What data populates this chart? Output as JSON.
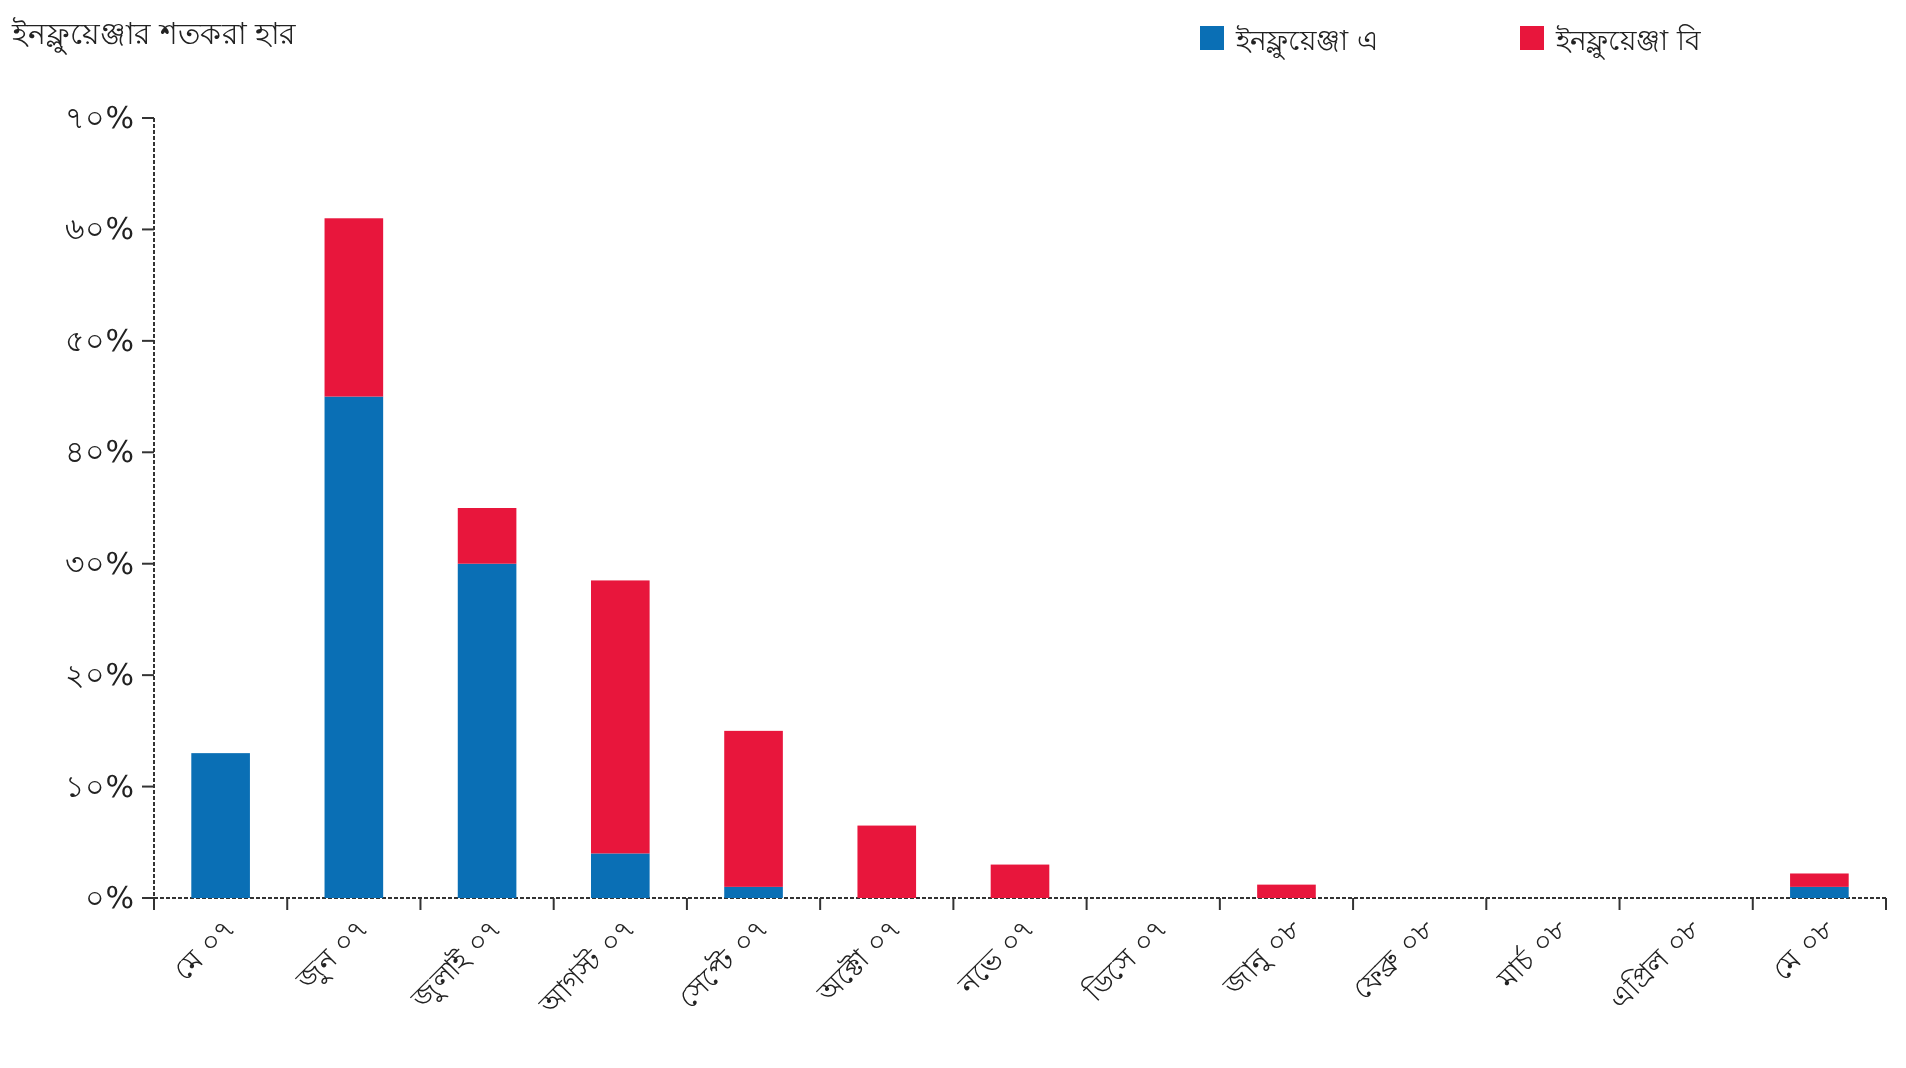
{
  "chart_data": {
    "type": "bar",
    "stacked": true,
    "title": "ইনফ্লুয়েঞ্জার শতকরা হার",
    "categories": [
      "মে ০৭",
      "জুন ০৭",
      "জুলাই ০৭",
      "আগস্ট ০৭",
      "সেপ্টে ০৭",
      "অক্টো ০৭",
      "নভে ০৭",
      "ডিসে ০৭",
      "জানু ০৮",
      "ফেব্রু ০৮",
      "মার্চ ০৮",
      "এপ্রিল ০৮",
      "মে ০৮"
    ],
    "series": [
      {
        "name": "ইনফ্লুয়েঞ্জা এ",
        "color": "#0a6fb5",
        "values": [
          13,
          45,
          30,
          4,
          1,
          0,
          0,
          0,
          0,
          0,
          0,
          0,
          1
        ]
      },
      {
        "name": "ইনফ্লুয়েঞ্জা বি",
        "color": "#e8163c",
        "values": [
          0,
          16,
          5,
          24.5,
          14,
          6.5,
          3,
          0,
          1.2,
          0,
          0,
          0,
          1.2
        ]
      }
    ],
    "ylim": [
      0,
      70
    ],
    "yticks": [
      {
        "value": 0,
        "label": "০%"
      },
      {
        "value": 10,
        "label": "১০%"
      },
      {
        "value": 20,
        "label": "২০%"
      },
      {
        "value": 30,
        "label": "৩০%"
      },
      {
        "value": 40,
        "label": "৪০%"
      },
      {
        "value": 50,
        "label": "৫০%"
      },
      {
        "value": 60,
        "label": "৬০%"
      },
      {
        "value": 70,
        "label": "৭০%"
      }
    ],
    "grid": false,
    "legend": "top right"
  }
}
